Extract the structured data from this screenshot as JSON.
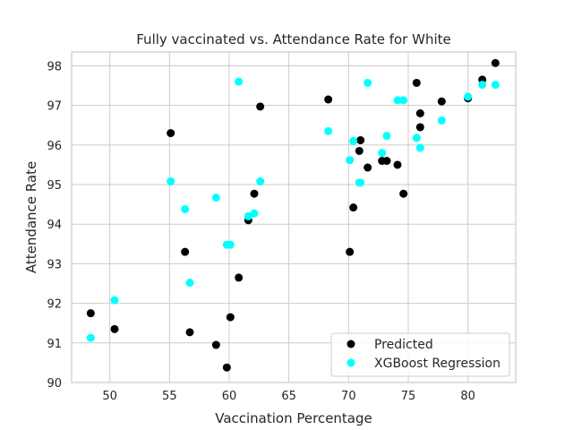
{
  "chart_data": {
    "type": "scatter",
    "title": "Fully vaccinated vs. Attendance Rate for White",
    "xlabel": "Vaccination Percentage",
    "ylabel": "Attendance Rate",
    "xlim": [
      46.8,
      84.0
    ],
    "ylim": [
      90.0,
      98.35
    ],
    "x_ticks": [
      50,
      55,
      60,
      65,
      70,
      75,
      80
    ],
    "y_ticks": [
      90,
      91,
      92,
      93,
      94,
      95,
      96,
      97,
      98
    ],
    "grid": true,
    "legend_position": "lower-right",
    "series": [
      {
        "name": "Predicted",
        "color": "#000000",
        "points": [
          [
            48.4,
            91.75
          ],
          [
            50.4,
            91.35
          ],
          [
            55.1,
            96.3
          ],
          [
            56.3,
            93.3
          ],
          [
            56.7,
            91.27
          ],
          [
            58.9,
            90.95
          ],
          [
            59.8,
            90.38
          ],
          [
            60.1,
            91.65
          ],
          [
            60.8,
            92.65
          ],
          [
            61.6,
            94.1
          ],
          [
            62.1,
            94.77
          ],
          [
            62.6,
            96.97
          ],
          [
            68.3,
            97.15
          ],
          [
            70.1,
            93.3
          ],
          [
            70.4,
            94.42
          ],
          [
            70.9,
            95.85
          ],
          [
            71.0,
            96.12
          ],
          [
            71.6,
            95.43
          ],
          [
            72.8,
            95.6
          ],
          [
            73.2,
            95.6
          ],
          [
            74.1,
            95.5
          ],
          [
            74.6,
            94.77
          ],
          [
            75.7,
            97.57
          ],
          [
            76.0,
            96.8
          ],
          [
            76.0,
            96.45
          ],
          [
            77.8,
            97.1
          ],
          [
            80.0,
            97.18
          ],
          [
            81.2,
            97.65
          ],
          [
            82.3,
            98.07
          ]
        ]
      },
      {
        "name": "XGBoost Regression",
        "color": "#00ffff",
        "points": [
          [
            48.4,
            91.13
          ],
          [
            50.4,
            92.08
          ],
          [
            55.1,
            95.08
          ],
          [
            56.3,
            94.38
          ],
          [
            56.7,
            92.52
          ],
          [
            58.9,
            94.67
          ],
          [
            59.8,
            93.48
          ],
          [
            60.1,
            93.48
          ],
          [
            60.8,
            97.6
          ],
          [
            61.6,
            94.2
          ],
          [
            62.1,
            94.27
          ],
          [
            62.6,
            95.08
          ],
          [
            68.3,
            96.35
          ],
          [
            70.1,
            95.62
          ],
          [
            70.4,
            96.1
          ],
          [
            70.9,
            95.05
          ],
          [
            71.0,
            95.05
          ],
          [
            71.6,
            97.57
          ],
          [
            72.8,
            95.8
          ],
          [
            73.2,
            96.23
          ],
          [
            74.1,
            97.13
          ],
          [
            74.6,
            97.13
          ],
          [
            75.7,
            96.18
          ],
          [
            76.0,
            95.93
          ],
          [
            77.8,
            96.62
          ],
          [
            80.0,
            97.22
          ],
          [
            81.2,
            97.52
          ],
          [
            82.3,
            97.52
          ]
        ]
      }
    ]
  }
}
